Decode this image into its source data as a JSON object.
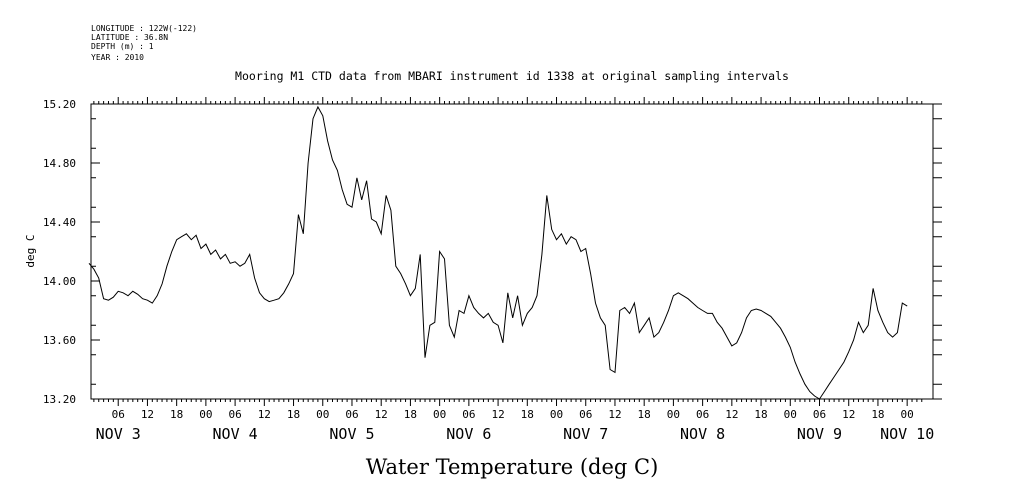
{
  "header": {
    "lines": [
      "LONGITUDE : 122W(-122)",
      "LATITUDE : 36.8N",
      "DEPTH (m) : 1",
      "YEAR : 2010"
    ]
  },
  "chart_data": {
    "type": "line",
    "title": "Mooring M1 CTD data from MBARI instrument id 1338 at original sampling intervals",
    "xlabel": "Water Temperature (deg C)",
    "ylabel": "deg C",
    "ylim": [
      13.2,
      15.2
    ],
    "yticks": [
      "13.20",
      "13.60",
      "14.00",
      "14.40",
      "14.80",
      "15.20"
    ],
    "xlim": [
      0,
      171
    ],
    "x_unit": "hours since Nov 3 00:00 2010",
    "hour_ticks": [
      {
        "x": 6,
        "label": "06"
      },
      {
        "x": 12,
        "label": "12"
      },
      {
        "x": 18,
        "label": "18"
      },
      {
        "x": 24,
        "label": "00"
      },
      {
        "x": 30,
        "label": "06"
      },
      {
        "x": 36,
        "label": "12"
      },
      {
        "x": 42,
        "label": "18"
      },
      {
        "x": 48,
        "label": "00"
      },
      {
        "x": 54,
        "label": "06"
      },
      {
        "x": 60,
        "label": "12"
      },
      {
        "x": 66,
        "label": "18"
      },
      {
        "x": 72,
        "label": "00"
      },
      {
        "x": 78,
        "label": "06"
      },
      {
        "x": 84,
        "label": "12"
      },
      {
        "x": 90,
        "label": "18"
      },
      {
        "x": 96,
        "label": "00"
      },
      {
        "x": 102,
        "label": "06"
      },
      {
        "x": 108,
        "label": "12"
      },
      {
        "x": 114,
        "label": "18"
      },
      {
        "x": 120,
        "label": "00"
      },
      {
        "x": 126,
        "label": "06"
      },
      {
        "x": 132,
        "label": "12"
      },
      {
        "x": 138,
        "label": "18"
      },
      {
        "x": 144,
        "label": "00"
      },
      {
        "x": 150,
        "label": "06"
      },
      {
        "x": 156,
        "label": "12"
      },
      {
        "x": 162,
        "label": "18"
      },
      {
        "x": 168,
        "label": "00"
      }
    ],
    "day_labels": [
      {
        "x": 6,
        "label": "NOV  3"
      },
      {
        "x": 30,
        "label": "NOV  4"
      },
      {
        "x": 54,
        "label": "NOV  5"
      },
      {
        "x": 78,
        "label": "NOV  6"
      },
      {
        "x": 102,
        "label": "NOV  7"
      },
      {
        "x": 126,
        "label": "NOV  8"
      },
      {
        "x": 150,
        "label": "NOV  9"
      },
      {
        "x": 168,
        "label": "NOV 10"
      }
    ],
    "series": [
      {
        "values": [
          [
            0,
            14.12
          ],
          [
            1,
            14.08
          ],
          [
            2,
            14.02
          ],
          [
            3,
            13.88
          ],
          [
            4,
            13.87
          ],
          [
            5,
            13.89
          ],
          [
            6,
            13.93
          ],
          [
            7,
            13.92
          ],
          [
            8,
            13.9
          ],
          [
            9,
            13.93
          ],
          [
            10,
            13.91
          ],
          [
            11,
            13.88
          ],
          [
            12,
            13.87
          ],
          [
            13,
            13.85
          ],
          [
            14,
            13.9
          ],
          [
            15,
            13.98
          ],
          [
            16,
            14.1
          ],
          [
            17,
            14.2
          ],
          [
            18,
            14.28
          ],
          [
            19,
            14.3
          ],
          [
            20,
            14.32
          ],
          [
            21,
            14.28
          ],
          [
            22,
            14.31
          ],
          [
            23,
            14.22
          ],
          [
            24,
            14.25
          ],
          [
            25,
            14.18
          ],
          [
            26,
            14.21
          ],
          [
            27,
            14.15
          ],
          [
            28,
            14.18
          ],
          [
            29,
            14.12
          ],
          [
            30,
            14.13
          ],
          [
            31,
            14.1
          ],
          [
            32,
            14.12
          ],
          [
            33,
            14.18
          ],
          [
            34,
            14.02
          ],
          [
            35,
            13.92
          ],
          [
            36,
            13.88
          ],
          [
            37,
            13.86
          ],
          [
            38,
            13.87
          ],
          [
            39,
            13.88
          ],
          [
            40,
            13.92
          ],
          [
            41,
            13.98
          ],
          [
            42,
            14.05
          ],
          [
            43,
            14.45
          ],
          [
            44,
            14.32
          ],
          [
            45,
            14.8
          ],
          [
            46,
            15.1
          ],
          [
            47,
            15.18
          ],
          [
            48,
            15.12
          ],
          [
            49,
            14.95
          ],
          [
            50,
            14.82
          ],
          [
            51,
            14.75
          ],
          [
            52,
            14.62
          ],
          [
            53,
            14.52
          ],
          [
            54,
            14.5
          ],
          [
            55,
            14.7
          ],
          [
            56,
            14.55
          ],
          [
            57,
            14.68
          ],
          [
            58,
            14.42
          ],
          [
            59,
            14.4
          ],
          [
            60,
            14.32
          ],
          [
            61,
            14.58
          ],
          [
            62,
            14.48
          ],
          [
            63,
            14.1
          ],
          [
            64,
            14.05
          ],
          [
            65,
            13.98
          ],
          [
            66,
            13.9
          ],
          [
            67,
            13.95
          ],
          [
            68,
            14.18
          ],
          [
            69,
            13.48
          ],
          [
            70,
            13.7
          ],
          [
            71,
            13.72
          ],
          [
            72,
            14.2
          ],
          [
            73,
            14.15
          ],
          [
            74,
            13.7
          ],
          [
            75,
            13.62
          ],
          [
            76,
            13.8
          ],
          [
            77,
            13.78
          ],
          [
            78,
            13.9
          ],
          [
            79,
            13.82
          ],
          [
            80,
            13.78
          ],
          [
            81,
            13.75
          ],
          [
            82,
            13.78
          ],
          [
            83,
            13.72
          ],
          [
            84,
            13.7
          ],
          [
            85,
            13.58
          ],
          [
            86,
            13.92
          ],
          [
            87,
            13.75
          ],
          [
            88,
            13.9
          ],
          [
            89,
            13.7
          ],
          [
            90,
            13.78
          ],
          [
            91,
            13.82
          ],
          [
            92,
            13.9
          ],
          [
            93,
            14.18
          ],
          [
            94,
            14.58
          ],
          [
            95,
            14.35
          ],
          [
            96,
            14.28
          ],
          [
            97,
            14.32
          ],
          [
            98,
            14.25
          ],
          [
            99,
            14.3
          ],
          [
            100,
            14.28
          ],
          [
            101,
            14.2
          ],
          [
            102,
            14.22
          ],
          [
            103,
            14.05
          ],
          [
            104,
            13.85
          ],
          [
            105,
            13.75
          ],
          [
            106,
            13.7
          ],
          [
            107,
            13.4
          ],
          [
            108,
            13.38
          ],
          [
            109,
            13.8
          ],
          [
            110,
            13.82
          ],
          [
            111,
            13.78
          ],
          [
            112,
            13.85
          ],
          [
            113,
            13.65
          ],
          [
            114,
            13.7
          ],
          [
            115,
            13.75
          ],
          [
            116,
            13.62
          ],
          [
            117,
            13.65
          ],
          [
            118,
            13.72
          ],
          [
            119,
            13.8
          ],
          [
            120,
            13.9
          ],
          [
            121,
            13.92
          ],
          [
            122,
            13.9
          ],
          [
            123,
            13.88
          ],
          [
            124,
            13.85
          ],
          [
            125,
            13.82
          ],
          [
            126,
            13.8
          ],
          [
            127,
            13.78
          ],
          [
            128,
            13.78
          ],
          [
            129,
            13.72
          ],
          [
            130,
            13.68
          ],
          [
            131,
            13.62
          ],
          [
            132,
            13.56
          ],
          [
            133,
            13.58
          ],
          [
            134,
            13.65
          ],
          [
            135,
            13.75
          ],
          [
            136,
            13.8
          ],
          [
            137,
            13.81
          ],
          [
            138,
            13.8
          ],
          [
            139,
            13.78
          ],
          [
            140,
            13.76
          ],
          [
            141,
            13.72
          ],
          [
            142,
            13.68
          ],
          [
            143,
            13.62
          ],
          [
            144,
            13.55
          ],
          [
            145,
            13.45
          ],
          [
            146,
            13.37
          ],
          [
            147,
            13.3
          ],
          [
            148,
            13.25
          ],
          [
            149,
            13.22
          ],
          [
            150,
            13.2
          ],
          [
            151,
            13.25
          ],
          [
            152,
            13.3
          ],
          [
            153,
            13.35
          ],
          [
            154,
            13.4
          ],
          [
            155,
            13.45
          ],
          [
            156,
            13.52
          ],
          [
            157,
            13.6
          ],
          [
            158,
            13.72
          ],
          [
            159,
            13.65
          ],
          [
            160,
            13.7
          ],
          [
            161,
            13.95
          ],
          [
            162,
            13.8
          ],
          [
            163,
            13.72
          ],
          [
            164,
            13.65
          ],
          [
            165,
            13.62
          ],
          [
            166,
            13.65
          ],
          [
            167,
            13.85
          ],
          [
            168,
            13.83
          ]
        ]
      }
    ]
  }
}
